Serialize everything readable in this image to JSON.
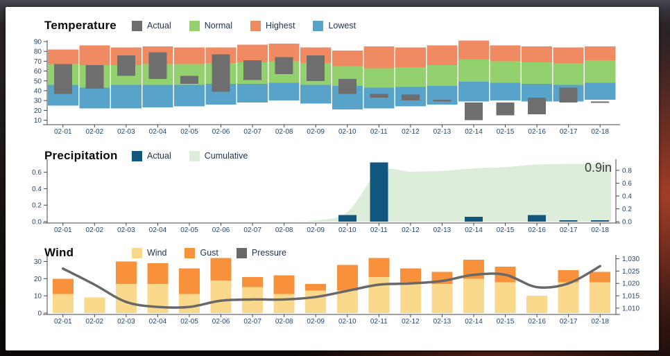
{
  "chart_data": [
    {
      "id": "temperature",
      "type": "bar",
      "title": "Temperature",
      "legend": [
        {
          "name": "Actual",
          "color": "#6e6e6e"
        },
        {
          "name": "Normal",
          "color": "#93d16e"
        },
        {
          "name": "Highest",
          "color": "#ef8a62"
        },
        {
          "name": "Lowest",
          "color": "#58a3c9"
        }
      ],
      "categories": [
        "02-01",
        "02-02",
        "02-03",
        "02-04",
        "02-05",
        "02-06",
        "02-07",
        "02-08",
        "02-09",
        "02-10",
        "02-11",
        "02-12",
        "02-13",
        "02-14",
        "02-15",
        "02-16",
        "02-17",
        "02-18"
      ],
      "yticks": {
        "labels": [
          "10",
          "20",
          "30",
          "40",
          "50",
          "60",
          "70",
          "80",
          "90"
        ],
        "values": [
          10,
          20,
          30,
          40,
          50,
          60,
          70,
          80,
          90
        ]
      },
      "ylim": [
        5,
        95
      ],
      "grid": false,
      "legend_position": "top",
      "series": [
        {
          "name": "Lowest",
          "role": "band",
          "color": "#58a3c9",
          "ranges": [
            [
              25,
              46
            ],
            [
              22,
              43
            ],
            [
              22,
              46
            ],
            [
              23,
              46
            ],
            [
              24,
              46
            ],
            [
              26,
              47
            ],
            [
              28,
              47
            ],
            [
              30,
              48
            ],
            [
              27,
              46
            ],
            [
              21,
              45
            ],
            [
              22,
              43
            ],
            [
              24,
              44
            ],
            [
              26,
              45
            ],
            [
              29,
              49
            ],
            [
              30,
              48
            ],
            [
              29,
              47
            ],
            [
              29,
              46
            ],
            [
              31,
              48
            ]
          ]
        },
        {
          "name": "Normal",
          "role": "band",
          "color": "#93d16e",
          "ranges": [
            [
              46,
              67
            ],
            [
              43,
              66
            ],
            [
              46,
              66
            ],
            [
              46,
              67
            ],
            [
              46,
              67
            ],
            [
              47,
              68
            ],
            [
              47,
              69
            ],
            [
              48,
              70
            ],
            [
              46,
              68
            ],
            [
              45,
              65
            ],
            [
              43,
              63
            ],
            [
              44,
              64
            ],
            [
              45,
              66
            ],
            [
              49,
              72
            ],
            [
              48,
              70
            ],
            [
              47,
              69
            ],
            [
              46,
              68
            ],
            [
              48,
              71
            ]
          ]
        },
        {
          "name": "Highest",
          "role": "band",
          "color": "#ef8a62",
          "ranges": [
            [
              67,
              82
            ],
            [
              66,
              86
            ],
            [
              66,
              84
            ],
            [
              67,
              85
            ],
            [
              67,
              84
            ],
            [
              68,
              84
            ],
            [
              69,
              87
            ],
            [
              70,
              88
            ],
            [
              68,
              84
            ],
            [
              65,
              81
            ],
            [
              63,
              85
            ],
            [
              64,
              84
            ],
            [
              66,
              86
            ],
            [
              72,
              91
            ],
            [
              70,
              86
            ],
            [
              69,
              85
            ],
            [
              68,
              84
            ],
            [
              71,
              85
            ]
          ]
        },
        {
          "name": "Actual",
          "role": "range-bar",
          "color": "#6e6e6e",
          "ranges": [
            [
              37,
              67
            ],
            [
              42,
              66
            ],
            [
              55,
              76
            ],
            [
              52,
              79
            ],
            [
              47,
              55
            ],
            [
              39,
              77
            ],
            [
              51,
              71
            ],
            [
              57,
              74
            ],
            [
              50,
              76
            ],
            [
              37,
              52
            ],
            [
              33,
              37
            ],
            [
              30,
              36
            ],
            [
              29,
              31
            ],
            [
              10,
              28
            ],
            [
              15,
              28
            ],
            [
              16,
              33
            ],
            [
              28,
              43
            ],
            [
              29,
              29
            ]
          ]
        }
      ]
    },
    {
      "id": "precipitation",
      "type": "area",
      "title": "Precipitation",
      "annotation": "0.9in",
      "legend": [
        {
          "name": "Actual",
          "color": "#11567d"
        },
        {
          "name": "Cumulative",
          "color": "#dcedda"
        }
      ],
      "categories": [
        "02-01",
        "02-02",
        "02-03",
        "02-04",
        "02-05",
        "02-06",
        "02-07",
        "02-08",
        "02-09",
        "02-10",
        "02-11",
        "02-12",
        "02-13",
        "02-14",
        "02-15",
        "02-16",
        "02-17",
        "02-18"
      ],
      "left_axis": {
        "labels": [
          "0.0",
          "0.2",
          "0.4",
          "0.6"
        ],
        "values": [
          0,
          0.2,
          0.4,
          0.6
        ],
        "lim": [
          0,
          0.74
        ]
      },
      "right_axis": {
        "labels": [
          "0.0",
          "0.2",
          "0.4",
          "0.6",
          "0.8"
        ],
        "values": [
          0,
          0.2,
          0.4,
          0.6,
          0.8
        ],
        "lim": [
          0,
          0.95
        ]
      },
      "series": [
        {
          "name": "Actual",
          "role": "bar",
          "axis": "left",
          "color": "#11567d",
          "values": [
            0,
            0,
            0,
            0,
            0,
            0,
            0,
            0,
            0,
            0.08,
            0.72,
            0,
            0,
            0.06,
            0,
            0.08,
            0.015,
            0.015
          ]
        },
        {
          "name": "Cumulative",
          "role": "area",
          "axis": "right",
          "color": "#dcedda",
          "values": [
            0,
            0,
            0,
            0,
            0,
            0,
            0,
            0,
            0.02,
            0.15,
            0.78,
            0.78,
            0.79,
            0.83,
            0.85,
            0.89,
            0.9,
            0.9
          ]
        }
      ]
    },
    {
      "id": "wind",
      "type": "bar",
      "title": "Wind",
      "legend": [
        {
          "name": "Wind",
          "color": "#fad98c"
        },
        {
          "name": "Gust",
          "color": "#f7913c"
        },
        {
          "name": "Pressure",
          "color": "#686868"
        }
      ],
      "categories": [
        "02-01",
        "02-02",
        "02-03",
        "02-04",
        "02-05",
        "02-06",
        "02-07",
        "02-08",
        "02-09",
        "02-10",
        "02-11",
        "02-12",
        "02-13",
        "02-14",
        "02-15",
        "02-16",
        "02-17",
        "02-18"
      ],
      "left_axis": {
        "labels": [
          "0",
          "10",
          "20",
          "30"
        ],
        "values": [
          0,
          10,
          20,
          30
        ],
        "lim": [
          0,
          33
        ]
      },
      "right_axis": {
        "labels": [
          "1,010",
          "1,015",
          "1,020",
          "1,025",
          "1,030"
        ],
        "values": [
          1010,
          1015,
          1020,
          1025,
          1030
        ],
        "lim": [
          1008,
          1031
        ]
      },
      "series": [
        {
          "name": "Wind",
          "role": "bar",
          "axis": "left",
          "color": "#fad98c",
          "values": [
            11,
            9,
            17,
            17,
            11,
            19,
            15,
            11,
            13,
            13,
            21,
            18,
            17,
            20,
            18,
            10,
            18,
            18
          ]
        },
        {
          "name": "Gust",
          "role": "stacked-bar-top",
          "axis": "left",
          "color": "#f7913c",
          "totals": [
            20,
            9,
            30,
            29,
            26,
            32,
            21,
            22,
            17,
            28,
            32,
            26,
            24,
            31,
            27,
            10,
            25,
            24
          ]
        },
        {
          "name": "Pressure",
          "role": "line",
          "axis": "right",
          "color": "#686868",
          "values": [
            1026,
            1019.5,
            1012.5,
            1010.5,
            1010.5,
            1013,
            1013.5,
            1013.5,
            1014.5,
            1017,
            1019.5,
            1020,
            1021,
            1023.5,
            1023.5,
            1018.5,
            1020,
            1027
          ]
        }
      ]
    }
  ]
}
